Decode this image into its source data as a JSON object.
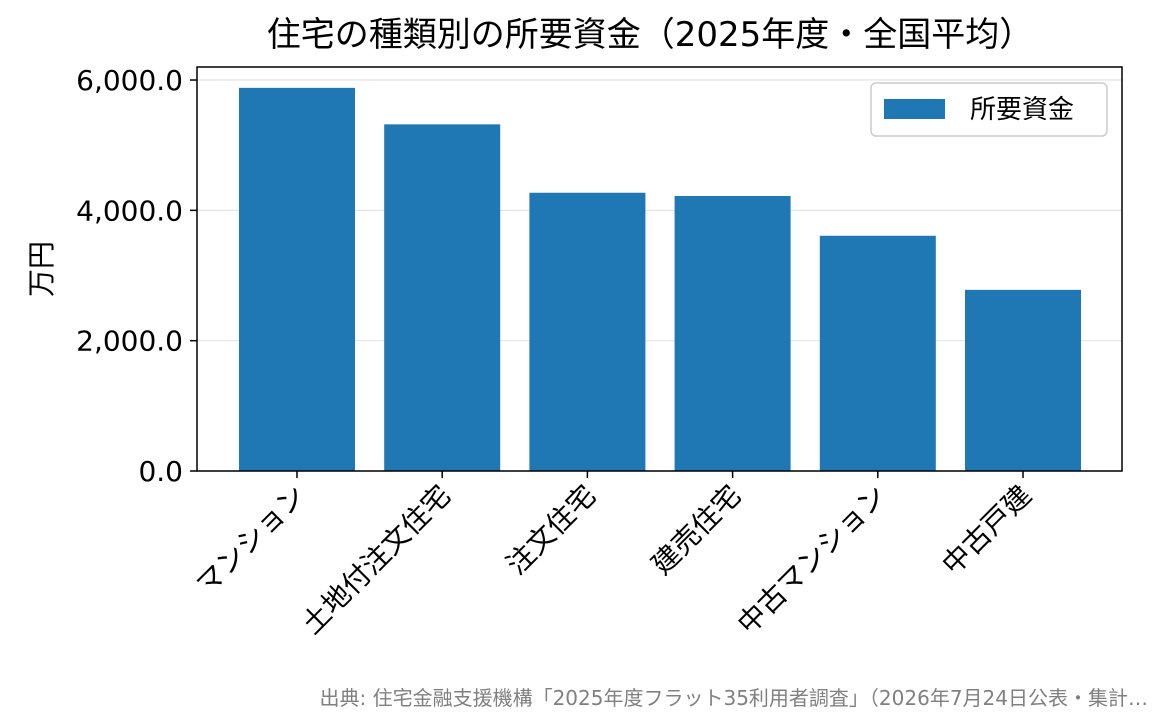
{
  "chart_data": {
    "type": "bar",
    "title": "住宅の種類別の所要資金（2025年度・全国平均）",
    "ylabel": "万円",
    "xlabel": "",
    "categories": [
      "マンション",
      "土地付注文住宅",
      "注文住宅",
      "建売住宅",
      "中古マンション",
      "中古戸建"
    ],
    "series": [
      {
        "name": "所要資金",
        "values": [
          5880,
          5320,
          4270,
          4220,
          3610,
          2780
        ]
      }
    ],
    "ylim": [
      0,
      6200
    ],
    "yticks": [
      0,
      2000,
      4000,
      6000
    ],
    "ytick_labels": [
      "0.0",
      "2,000.0",
      "4,000.0",
      "6,000.0"
    ],
    "grid": "horizontal",
    "legend_position": "top-right",
    "colors": {
      "bar": "#1f77b4",
      "grid": "#e5e5e5",
      "axis": "#000000"
    }
  },
  "source_note": "出典: 住宅金融支援機構「2025年度フラット35利用者調査」（2026年7月24日公表・集計…"
}
